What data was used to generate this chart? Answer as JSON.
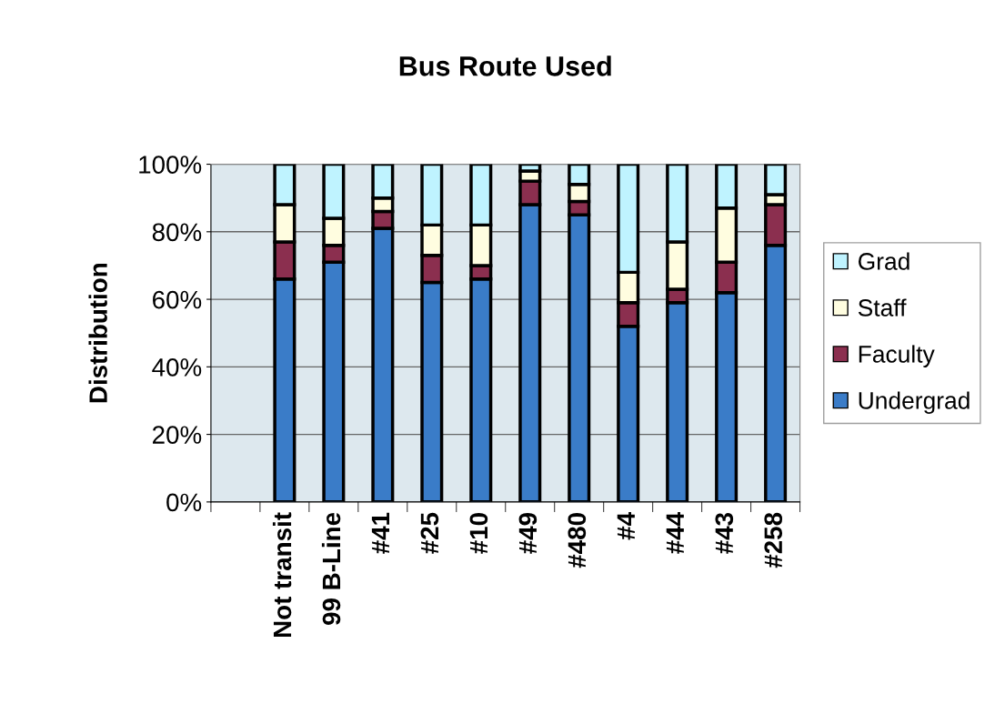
{
  "chart_data": {
    "type": "bar",
    "stacked": true,
    "title": "Bus Route Used",
    "ylabel": "Distribution",
    "categories": [
      null,
      "Not transit",
      "99 B-Line",
      "#41",
      "#25",
      "#10",
      "#49",
      "#480",
      "#4",
      "#44",
      "#43",
      "#258"
    ],
    "series": [
      {
        "name": "Undergrad",
        "color": "#3a7cc8",
        "values": [
          null,
          66,
          71,
          81,
          65,
          66,
          88,
          85,
          52,
          59,
          62,
          76
        ]
      },
      {
        "name": "Faculty",
        "color": "#8b2f4f",
        "values": [
          null,
          11,
          5,
          5,
          8,
          4,
          7,
          4,
          7,
          4,
          9,
          12
        ]
      },
      {
        "name": "Staff",
        "color": "#fffde0",
        "values": [
          null,
          11,
          8,
          4,
          9,
          12,
          3,
          5,
          9,
          14,
          16,
          3
        ]
      },
      {
        "name": "Grad",
        "color": "#bff3ff",
        "values": [
          null,
          12,
          16,
          10,
          18,
          18,
          2,
          6,
          32,
          23,
          13,
          9
        ]
      }
    ],
    "ylim": [
      0,
      100
    ],
    "yticks": [
      {
        "value": 0,
        "label": "0%"
      },
      {
        "value": 20,
        "label": "20%"
      },
      {
        "value": 40,
        "label": "40%"
      },
      {
        "value": 60,
        "label": "60%"
      },
      {
        "value": 80,
        "label": "80%"
      },
      {
        "value": 100,
        "label": "100%"
      }
    ],
    "grid": "y",
    "legend": "right"
  }
}
